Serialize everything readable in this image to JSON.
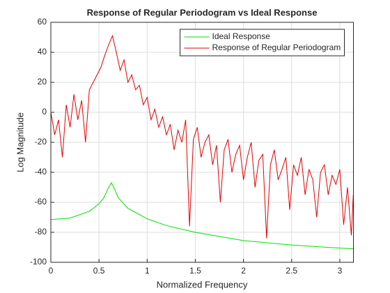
{
  "chart_data": {
    "type": "line",
    "title": "Response of Regular Periodogram vs Ideal Response",
    "xlabel": "Normalized Frequency",
    "ylabel": "Log Magnitude",
    "xlim": [
      0,
      3.1416
    ],
    "ylim": [
      -100,
      60
    ],
    "xticks": [
      0,
      0.5,
      1,
      1.5,
      2,
      2.5,
      3
    ],
    "yticks": [
      -100,
      -80,
      -60,
      -40,
      -20,
      0,
      20,
      40,
      60
    ],
    "grid": true,
    "legend": "upper right",
    "series": [
      {
        "name": "Ideal Response",
        "color": "#00e000",
        "x": [
          0,
          0.2,
          0.4,
          0.5,
          0.55,
          0.6,
          0.63,
          0.66,
          0.7,
          0.8,
          1.0,
          1.2,
          1.5,
          2.0,
          2.5,
          3.0,
          3.1416
        ],
        "values": [
          -71.5,
          -70.5,
          -66,
          -61,
          -57,
          -50,
          -47,
          -51,
          -57,
          -64,
          -71,
          -75.5,
          -80,
          -85.5,
          -88.5,
          -90.5,
          -91
        ]
      },
      {
        "name": "Response of Regular Periodogram",
        "color": "#e00000",
        "x": [
          0,
          0.04,
          0.08,
          0.12,
          0.16,
          0.2,
          0.24,
          0.28,
          0.32,
          0.36,
          0.4,
          0.44,
          0.48,
          0.52,
          0.56,
          0.6,
          0.64,
          0.68,
          0.72,
          0.76,
          0.8,
          0.84,
          0.88,
          0.92,
          0.96,
          1.0,
          1.04,
          1.08,
          1.12,
          1.16,
          1.2,
          1.24,
          1.28,
          1.32,
          1.36,
          1.4,
          1.44,
          1.48,
          1.52,
          1.56,
          1.6,
          1.64,
          1.68,
          1.72,
          1.76,
          1.8,
          1.84,
          1.88,
          1.92,
          1.96,
          2.0,
          2.04,
          2.08,
          2.12,
          2.16,
          2.2,
          2.24,
          2.28,
          2.32,
          2.36,
          2.4,
          2.44,
          2.48,
          2.52,
          2.56,
          2.6,
          2.64,
          2.68,
          2.72,
          2.76,
          2.8,
          2.84,
          2.88,
          2.92,
          2.96,
          3.0,
          3.04,
          3.08,
          3.12,
          3.14
        ],
        "values": [
          0,
          -15,
          -5,
          -30,
          5,
          -10,
          12,
          -5,
          8,
          -20,
          15,
          20,
          25,
          30,
          38,
          45,
          51,
          40,
          28,
          35,
          20,
          25,
          15,
          18,
          5,
          10,
          -5,
          2,
          -10,
          -3,
          -15,
          -8,
          -25,
          -12,
          -20,
          -5,
          -76,
          -18,
          -10,
          -30,
          -20,
          -15,
          -35,
          -22,
          -60,
          -25,
          -18,
          -40,
          -28,
          -22,
          -45,
          -30,
          -20,
          -50,
          -32,
          -28,
          -84,
          -35,
          -25,
          -45,
          -38,
          -30,
          -65,
          -35,
          -42,
          -30,
          -55,
          -38,
          -45,
          -70,
          -40,
          -35,
          -55,
          -42,
          -48,
          -38,
          -75,
          -50,
          -82,
          -55
        ]
      }
    ]
  }
}
